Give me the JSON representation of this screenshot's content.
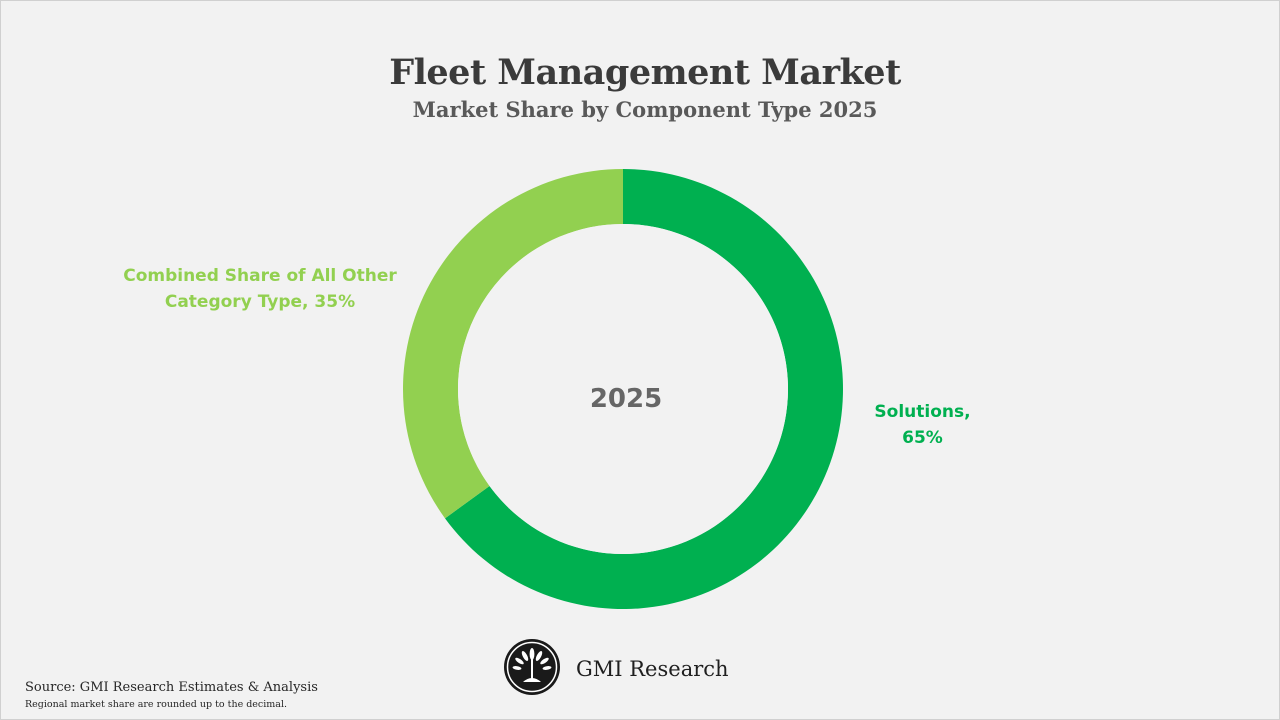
{
  "header": {
    "title": "Fleet Management Market",
    "subtitle": "Market Share by Component Type 2025"
  },
  "chart_data": {
    "type": "pie",
    "variant": "donut",
    "title": "Fleet Management Market",
    "subtitle": "Market Share by Component Type 2025",
    "center_label": "2025",
    "slices": [
      {
        "name": "Solutions",
        "value": 65,
        "color": "#00b050",
        "label_line1": "Solutions,",
        "label_line2": "65%"
      },
      {
        "name": "Combined Share of All Other Category Type",
        "value": 35,
        "color": "#92d050",
        "label_line1": "Combined Share of All Other",
        "label_line2": "Category Type, 35%"
      }
    ],
    "unit": "%"
  },
  "footer": {
    "brand": "GMI Research",
    "source": "Source: GMI Research Estimates & Analysis",
    "note": "Regional market share are rounded up to the decimal."
  },
  "colors": {
    "background": "#f2f2f2",
    "solutions": "#00b050",
    "other": "#92d050",
    "title": "#3b3b3b"
  }
}
